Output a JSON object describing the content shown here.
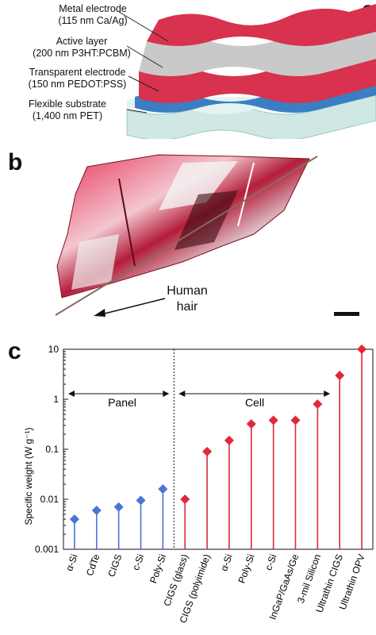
{
  "panel_a": {
    "letter": "a",
    "layers": [
      {
        "name": "Metal electrode",
        "detail": "(115 nm Ca/Ag)"
      },
      {
        "name": "Active layer",
        "detail": "(200 nm P3HT:PCBM)"
      },
      {
        "name": "Transparent electrode",
        "detail": "(150 nm PEDOT:PSS)"
      },
      {
        "name": "Flexible substrate",
        "detail": "(1,400 nm PET)"
      }
    ],
    "colors": {
      "metal": "#c9c9c9",
      "active": "#d8324f",
      "pedot": "#3a7fc4",
      "pet": "#cfe8e4"
    }
  },
  "panel_b": {
    "letter": "b",
    "hair_label_1": "Human",
    "hair_label_2": "hair"
  },
  "panel_c": {
    "letter": "c",
    "panel_label": "Panel",
    "cell_label": "Cell"
  },
  "chart_data": {
    "type": "scatter",
    "title": "",
    "xlabel": "",
    "ylabel": "Specific weight (W g⁻¹)",
    "yscale": "log",
    "ylim": [
      0.001,
      10
    ],
    "yticks": [
      "0.001",
      "0.01",
      "0.1",
      "1",
      "10"
    ],
    "categories": [
      "α-Si",
      "CdTe",
      "CIGS",
      "c-Si",
      "Poly-Si",
      "CIGS (glass)",
      "CIGS (polyimide)",
      "α-Si",
      "Poly-Si",
      "c-Si",
      "InGaP/GaAs/Ge",
      "3-mil Silicon",
      "Ultrathin CIGS",
      "Ultrathin OPV"
    ],
    "series": [
      {
        "name": "Panel",
        "color": "#4a74d8",
        "indices": [
          0,
          1,
          2,
          3,
          4
        ],
        "values": [
          0.004,
          0.006,
          0.007,
          0.0095,
          0.016
        ]
      },
      {
        "name": "Cell",
        "color": "#e0283c",
        "indices": [
          5,
          6,
          7,
          8,
          9,
          10,
          11,
          12,
          13
        ],
        "values": [
          0.01,
          0.09,
          0.15,
          0.32,
          0.38,
          0.38,
          0.8,
          3.0,
          10.0
        ]
      }
    ],
    "divider_after_index": 4,
    "grid": false,
    "legend": "none"
  }
}
